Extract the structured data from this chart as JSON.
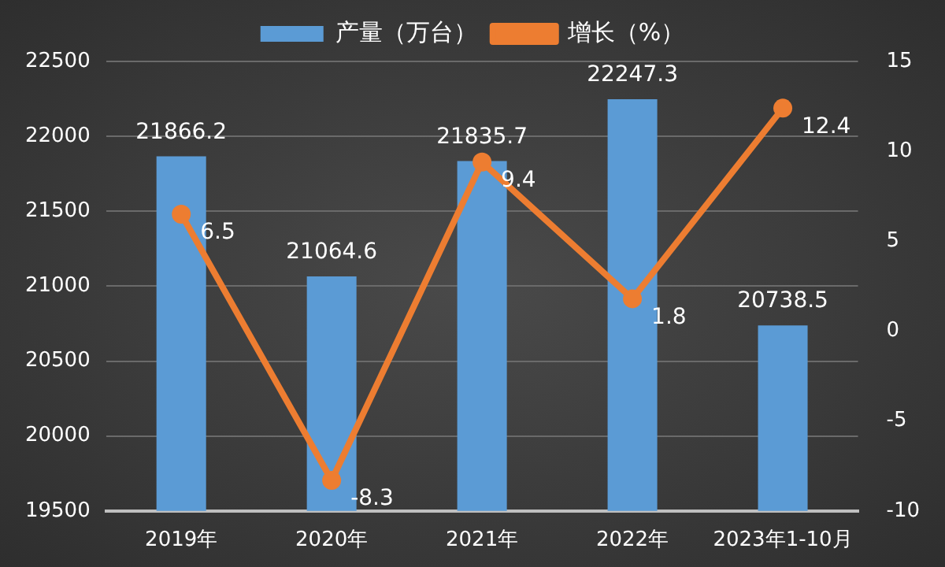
{
  "chart_data": {
    "type": "bar",
    "categories": [
      "2019年",
      "2020年",
      "2021年",
      "2022年",
      "2023年1-10月"
    ],
    "series": [
      {
        "name": "产量（万台）",
        "color": "#5b9bd5",
        "values": [
          21866.2,
          21064.6,
          21835.7,
          22247.3,
          20738.5
        ]
      },
      {
        "name": "增长（%）",
        "type": "line",
        "axis": "y2",
        "color": "#ed7d31",
        "values": [
          6.5,
          -8.3,
          9.4,
          1.8,
          12.4
        ]
      }
    ],
    "ylim": [
      19500,
      22500
    ],
    "yticks": [
      19500,
      20000,
      20500,
      21000,
      21500,
      22000,
      22500
    ],
    "y2lim": [
      -10,
      15
    ],
    "y2ticks": [
      -10,
      -5,
      0,
      5,
      10,
      15
    ],
    "grid": "y",
    "legend": "top",
    "marker": "circle",
    "data_labels": true
  }
}
